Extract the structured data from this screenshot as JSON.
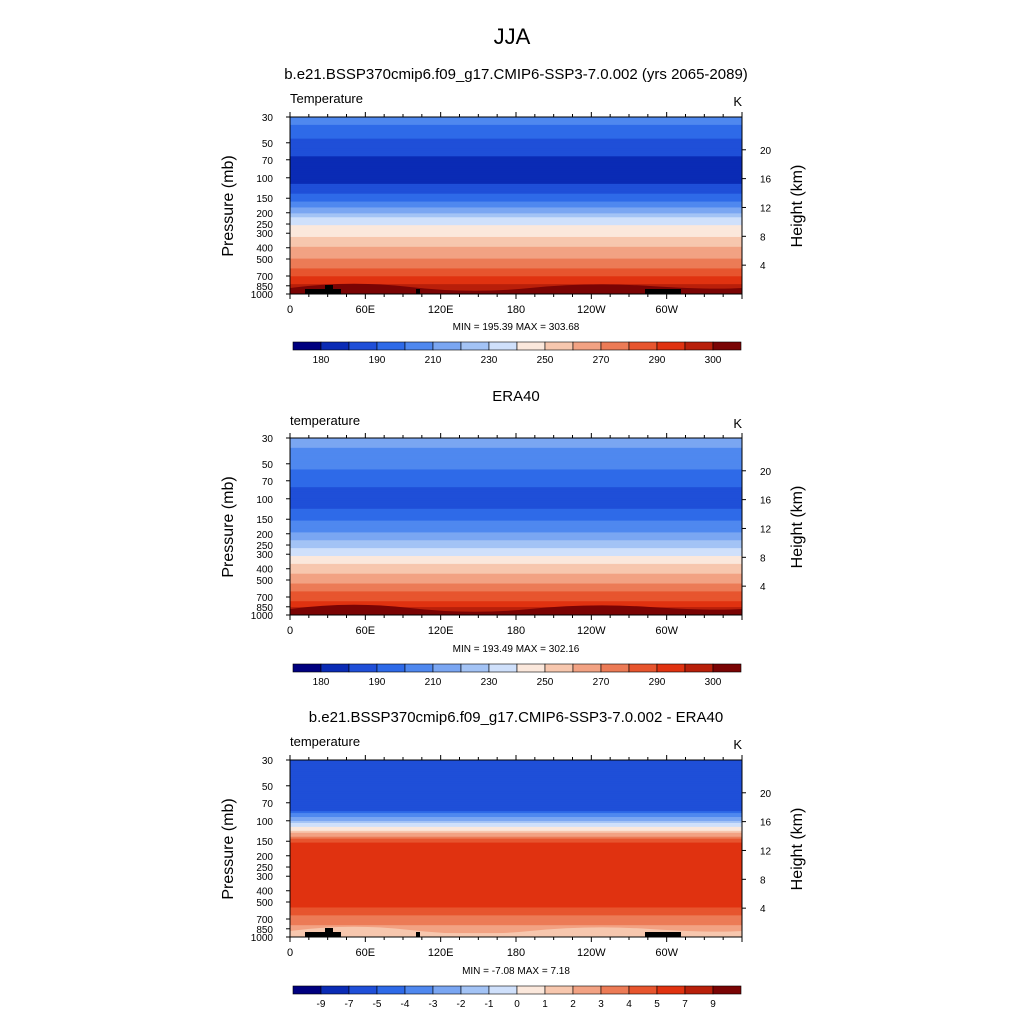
{
  "figure": {
    "title": "JJA"
  },
  "chart_data": [
    {
      "type": "heatmap",
      "title": "b.e21.BSSP370cmip6.f09_g17.CMIP6-SSP3-7.0.002 (yrs 2065-2089)",
      "left_label": "Temperature",
      "units": "K",
      "ylabel": "Pressure (mb)",
      "right_label": "Height (km)",
      "x_ticks": [
        "0",
        "60E",
        "120E",
        "180",
        "120W",
        "60W"
      ],
      "y_ticks": [
        30,
        50,
        70,
        100,
        150,
        200,
        250,
        300,
        400,
        500,
        700,
        850,
        1000
      ],
      "y_ticks_right": [
        20,
        16,
        12,
        8,
        4
      ],
      "ylim": [
        1000,
        30
      ],
      "y_scale": "log",
      "stats": "MIN = 195.39  MAX = 303.68",
      "colorbar_labels": [
        "180",
        "190",
        "210",
        "230",
        "250",
        "270",
        "290",
        "300"
      ],
      "colorbar_colors": [
        "#00007f",
        "#0a2bb5",
        "#1f4fd8",
        "#2e6ae8",
        "#4f88ef",
        "#7aa6f2",
        "#a3c3f5",
        "#cfe0fb",
        "#fbe8dc",
        "#f7c7ae",
        "#f2a283",
        "#ec7b56",
        "#e7552e",
        "#e03210",
        "#b81f0a",
        "#7a0404"
      ],
      "profile": [
        {
          "p": 30,
          "level": 4
        },
        {
          "p": 40,
          "level": 3
        },
        {
          "p": 55,
          "level": 2
        },
        {
          "p": 80,
          "level": 1
        },
        {
          "p": 100,
          "level": 1
        },
        {
          "p": 125,
          "level": 2
        },
        {
          "p": 155,
          "level": 3
        },
        {
          "p": 190,
          "level": 5
        },
        {
          "p": 230,
          "level": 7
        },
        {
          "p": 290,
          "level": 8
        },
        {
          "p": 360,
          "level": 9
        },
        {
          "p": 440,
          "level": 10
        },
        {
          "p": 540,
          "level": 11
        },
        {
          "p": 660,
          "level": 12
        },
        {
          "p": 780,
          "level": 13
        },
        {
          "p": 900,
          "level": 14
        },
        {
          "p": 1000,
          "level": 14.8
        }
      ]
    },
    {
      "type": "heatmap",
      "title": "ERA40",
      "left_label": "temperature",
      "units": "K",
      "ylabel": "Pressure (mb)",
      "right_label": "Height (km)",
      "x_ticks": [
        "0",
        "60E",
        "120E",
        "180",
        "120W",
        "60W"
      ],
      "y_ticks": [
        30,
        50,
        70,
        100,
        150,
        200,
        250,
        300,
        400,
        500,
        700,
        850,
        1000
      ],
      "y_ticks_right": [
        20,
        16,
        12,
        8,
        4
      ],
      "ylim": [
        1000,
        30
      ],
      "y_scale": "log",
      "stats": "MIN = 193.49  MAX = 302.16",
      "colorbar_labels": [
        "180",
        "190",
        "210",
        "230",
        "250",
        "270",
        "290",
        "300"
      ],
      "colorbar_colors": [
        "#00007f",
        "#0a2bb5",
        "#1f4fd8",
        "#2e6ae8",
        "#4f88ef",
        "#7aa6f2",
        "#a3c3f5",
        "#cfe0fb",
        "#fbe8dc",
        "#f7c7ae",
        "#f2a283",
        "#ec7b56",
        "#e7552e",
        "#e03210",
        "#b81f0a",
        "#7a0404"
      ],
      "profile": [
        {
          "p": 30,
          "level": 5
        },
        {
          "p": 45,
          "level": 4
        },
        {
          "p": 70,
          "level": 3
        },
        {
          "p": 90,
          "level": 2
        },
        {
          "p": 110,
          "level": 2
        },
        {
          "p": 140,
          "level": 3
        },
        {
          "p": 175,
          "level": 4
        },
        {
          "p": 215,
          "level": 5
        },
        {
          "p": 250,
          "level": 6
        },
        {
          "p": 290,
          "level": 7
        },
        {
          "p": 340,
          "level": 8
        },
        {
          "p": 400,
          "level": 9
        },
        {
          "p": 480,
          "level": 10
        },
        {
          "p": 580,
          "level": 11
        },
        {
          "p": 690,
          "level": 12
        },
        {
          "p": 810,
          "level": 13
        },
        {
          "p": 920,
          "level": 14
        },
        {
          "p": 1000,
          "level": 14.5
        }
      ]
    },
    {
      "type": "heatmap",
      "title": "b.e21.BSSP370cmip6.f09_g17.CMIP6-SSP3-7.0.002 - ERA40",
      "left_label": "temperature",
      "units": "K",
      "ylabel": "Pressure (mb)",
      "right_label": "Height (km)",
      "x_ticks": [
        "0",
        "60E",
        "120E",
        "180",
        "120W",
        "60W"
      ],
      "y_ticks": [
        30,
        50,
        70,
        100,
        150,
        200,
        250,
        300,
        400,
        500,
        700,
        850,
        1000
      ],
      "y_ticks_right": [
        20,
        16,
        12,
        8,
        4
      ],
      "ylim": [
        1000,
        30
      ],
      "y_scale": "log",
      "stats": "MIN = -7.08  MAX =  7.18",
      "colorbar_labels": [
        "-9",
        "-7",
        "-5",
        "-4",
        "-3",
        "-2",
        "-1",
        "0",
        "1",
        "2",
        "3",
        "4",
        "5",
        "7",
        "9"
      ],
      "colorbar_colors": [
        "#00007f",
        "#0a2bb5",
        "#1f4fd8",
        "#2e6ae8",
        "#4f88ef",
        "#7aa6f2",
        "#a3c3f5",
        "#cfe0fb",
        "#fbe8dc",
        "#f7c7ae",
        "#f2a283",
        "#ec7b56",
        "#e7552e",
        "#e03210",
        "#b81f0a",
        "#7a0404"
      ],
      "profile": [
        {
          "p": 30,
          "level": 2
        },
        {
          "p": 80,
          "level": 2
        },
        {
          "p": 95,
          "level": 5
        },
        {
          "p": 110,
          "level": 7
        },
        {
          "p": 125,
          "level": 9
        },
        {
          "p": 145,
          "level": 12
        },
        {
          "p": 170,
          "level": 13
        },
        {
          "p": 500,
          "level": 13
        },
        {
          "p": 600,
          "level": 12
        },
        {
          "p": 720,
          "level": 11
        },
        {
          "p": 850,
          "level": 10
        },
        {
          "p": 1000,
          "level": 9
        }
      ]
    }
  ]
}
